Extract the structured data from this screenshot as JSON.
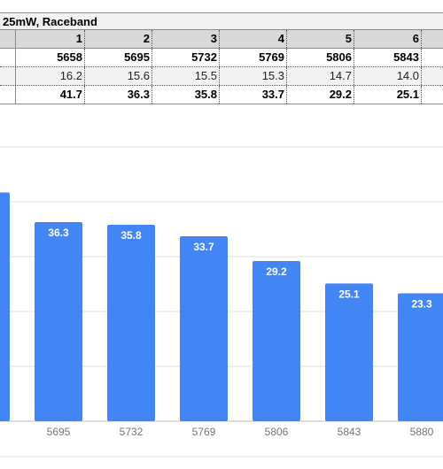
{
  "table": {
    "title": "25mW, Raceband",
    "channels": [
      "1",
      "2",
      "3",
      "4",
      "5",
      "6"
    ],
    "rows": [
      [
        "5658",
        "5695",
        "5732",
        "5769",
        "5806",
        "5843"
      ],
      [
        "16.2",
        "15.6",
        "15.5",
        "15.3",
        "14.7",
        "14.0"
      ],
      [
        "41.7",
        "36.3",
        "35.8",
        "33.7",
        "29.2",
        "25.1"
      ]
    ]
  },
  "chart_data": {
    "type": "bar",
    "categories": [
      "5695",
      "5732",
      "5769",
      "5806",
      "5843",
      "5880"
    ],
    "values": [
      36.3,
      35.8,
      33.7,
      29.2,
      25.1,
      23.3
    ],
    "partially_visible_left_bar": 41.7,
    "ylim": [
      0,
      50
    ],
    "grid": true,
    "bar_color": "#4285f4",
    "label_color": "#ffffff",
    "tick_color": "#757575",
    "grid_color": "#e0e0e0"
  }
}
